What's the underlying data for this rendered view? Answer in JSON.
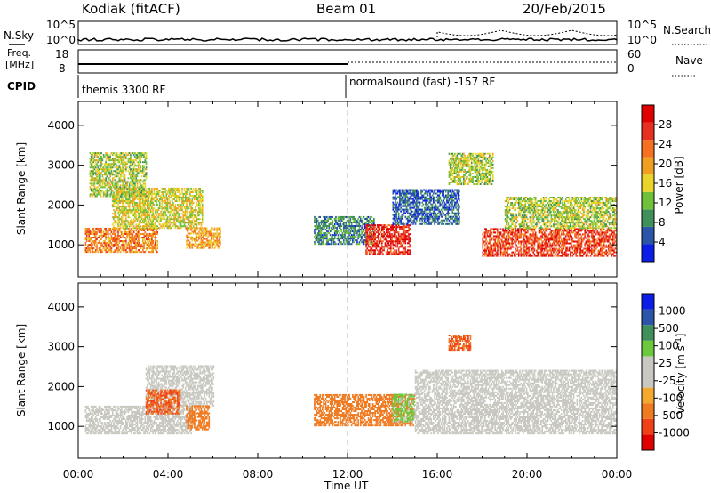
{
  "header": {
    "station": "Kodiak (fitACF)",
    "beam": "Beam 01",
    "date": "20/Feb/2015"
  },
  "top_panel": {
    "left_label": "N.Sky",
    "right_label": "N.Search",
    "left_ticks": [
      "10^5",
      "10^0"
    ],
    "right_ticks": [
      "10^5",
      "10^0"
    ]
  },
  "freq_panel": {
    "left_label_line1": "Freq.",
    "left_label_line2": "[MHz]",
    "right_label": "Nave",
    "left_ticks": [
      "18",
      "8"
    ],
    "right_ticks": [
      "60",
      "0"
    ]
  },
  "cpid_panel": {
    "label": "CPID",
    "program_1": "themis 3300 RF",
    "program_2": "normalsound (fast) -157 RF"
  },
  "time_axis": {
    "label": "Time UT",
    "ticks": [
      "00:00",
      "04:00",
      "08:00",
      "12:00",
      "16:00",
      "20:00",
      "00:00"
    ]
  },
  "colors": {
    "power": [
      "#0a1ee8",
      "#2a55a8",
      "#3f8f5a",
      "#6fc13a",
      "#e9d42a",
      "#f0a020",
      "#f57020",
      "#e83020",
      "#e00000"
    ],
    "velocity": [
      "#e00000",
      "#f04018",
      "#f07a20",
      "#f5a830",
      "#c8c8c0",
      "#c8c8c0",
      "#6cc83c",
      "#3f8f5a",
      "#2a55a8",
      "#0a1ee8"
    ],
    "ground_scatter": "#c8c8c0"
  },
  "chart_data": [
    {
      "type": "heatmap",
      "panel": "power",
      "xlabel": "",
      "ylabel": "Slant Range [km]",
      "yticks": [
        "1000",
        "2000",
        "3000",
        "4000"
      ],
      "ylim": [
        200,
        4600
      ],
      "xlim_hours": [
        0,
        24
      ],
      "colorbar_label": "Power [dB]",
      "colorbar_ticks": [
        "4",
        "8",
        "12",
        "16",
        "20",
        "24",
        "28"
      ],
      "colorbar_range": [
        0,
        32
      ],
      "regions": [
        {
          "t0": 0.3,
          "t1": 3.5,
          "r0": 800,
          "r1": 1400,
          "v": 22
        },
        {
          "t0": 1.5,
          "t1": 5.5,
          "r0": 1400,
          "r1": 2400,
          "v": 16
        },
        {
          "t0": 0.5,
          "t1": 3.0,
          "r0": 2200,
          "r1": 3300,
          "v": 14
        },
        {
          "t0": 4.8,
          "t1": 6.3,
          "r0": 900,
          "r1": 1400,
          "v": 20
        },
        {
          "t0": 10.5,
          "t1": 13.2,
          "r0": 1000,
          "r1": 1700,
          "v": 8
        },
        {
          "t0": 12.8,
          "t1": 14.8,
          "r0": 750,
          "r1": 1500,
          "v": 28
        },
        {
          "t0": 14.0,
          "t1": 17.0,
          "r0": 1500,
          "r1": 2400,
          "v": 6
        },
        {
          "t0": 16.5,
          "t1": 18.5,
          "r0": 2500,
          "r1": 3300,
          "v": 14
        },
        {
          "t0": 18.0,
          "t1": 24.0,
          "r0": 700,
          "r1": 1400,
          "v": 26
        },
        {
          "t0": 19.0,
          "t1": 24.0,
          "r0": 1400,
          "r1": 2200,
          "v": 14
        }
      ]
    },
    {
      "type": "heatmap",
      "panel": "velocity",
      "xlabel": "Time UT",
      "ylabel": "Slant Range [km]",
      "yticks": [
        "1000",
        "2000",
        "3000",
        "4000"
      ],
      "ylim": [
        200,
        4600
      ],
      "xlim_hours": [
        0,
        24
      ],
      "colorbar_label": "Velocity [m s^-1]",
      "colorbar_ticks": [
        "1000",
        "500",
        "100",
        "25",
        "-25",
        "-100",
        "-500",
        "-1000"
      ],
      "regions": [
        {
          "t0": 0.3,
          "t1": 5.0,
          "r0": 800,
          "r1": 1500,
          "v": "gs"
        },
        {
          "t0": 3.0,
          "t1": 6.0,
          "r0": 1500,
          "r1": 2500,
          "v": "gs"
        },
        {
          "t0": 3.0,
          "t1": 4.5,
          "r0": 1300,
          "r1": 1900,
          "v": -500
        },
        {
          "t0": 4.8,
          "t1": 5.8,
          "r0": 900,
          "r1": 1500,
          "v": -200
        },
        {
          "t0": 10.5,
          "t1": 15.0,
          "r0": 1000,
          "r1": 1800,
          "v": -300
        },
        {
          "t0": 14.0,
          "t1": 15.0,
          "r0": 1100,
          "r1": 1800,
          "v": 150
        },
        {
          "t0": 15.0,
          "t1": 24.0,
          "r0": 800,
          "r1": 2400,
          "v": "gs"
        },
        {
          "t0": 16.5,
          "t1": 17.5,
          "r0": 2900,
          "r1": 3300,
          "v": -500
        }
      ]
    }
  ]
}
